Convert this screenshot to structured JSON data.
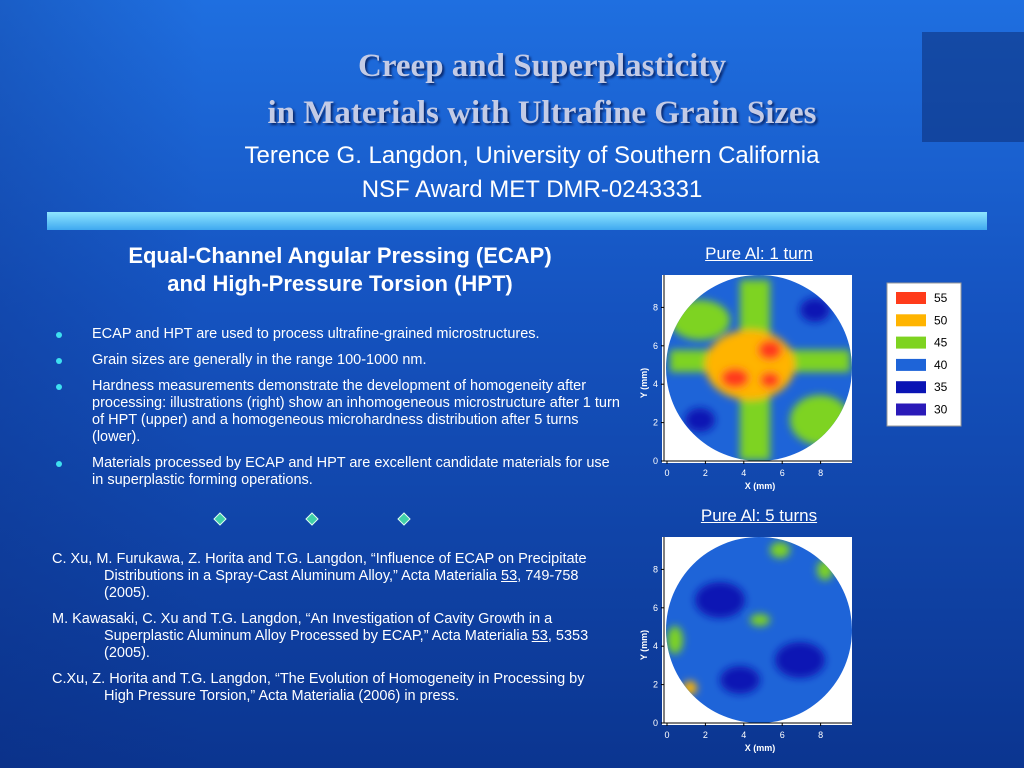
{
  "header": {
    "title_line1": "Creep and Superplasticity",
    "title_line2": "in Materials with Ultrafine Grain Sizes",
    "author": "Terence G. Langdon, University of Southern California",
    "award": "NSF Award MET DMR-0243331"
  },
  "section": {
    "heading_line1": "Equal-Channel Angular Pressing (ECAP)",
    "heading_line2": "and High-Pressure Torsion (HPT)"
  },
  "bullets": [
    "ECAP and HPT are used to process ultrafine-grained microstructures.",
    "Grain sizes are generally in the range 100-1000 nm.",
    "Hardness measurements demonstrate the development of homogeneity after processing: illustrations (right) show an inhomogeneous microstructure after 1 turn of HPT (upper) and a homogeneous microhardness distribution after 5 turns (lower).",
    "Materials processed by ECAP and HPT are excellent candidate materials for use in superplastic forming operations."
  ],
  "references": [
    {
      "before": "C. Xu, M. Furukawa, Z. Horita and T.G. Langdon, “Influence of ECAP on Precipitate Distributions in a Spray-Cast Aluminum Alloy,” Acta Materialia ",
      "volume": "53",
      "after": ", 749-758 (2005)."
    },
    {
      "before": "M. Kawasaki, C. Xu and T.G. Langdon, “An Investigation of Cavity Growth in a Superplastic Aluminum Alloy Processed by ECAP,” Acta Materialia ",
      "volume": "53",
      "after": ", 5353 (2005)."
    },
    {
      "before": "C.Xu, Z. Horita and T.G. Langdon, “The Evolution of Homogeneity in Processing by High Pressure Torsion,” Acta Materialia (2006) in press."
    }
  ],
  "maps": [
    {
      "caption": "Pure Al: 1 turn",
      "xlabel": "X (mm)",
      "ylabel": "Y (mm)",
      "xticks": [
        0,
        2,
        4,
        6,
        8
      ],
      "yticks": [
        0,
        2,
        4,
        6,
        8
      ]
    },
    {
      "caption": "Pure Al: 5 turns",
      "xlabel": "X (mm)",
      "ylabel": "Y (mm)",
      "xticks": [
        0,
        2,
        4,
        6,
        8
      ],
      "yticks": [
        0,
        2,
        4,
        6,
        8
      ]
    }
  ],
  "legend": [
    {
      "value": 55,
      "color": "#ff3b1a"
    },
    {
      "value": 50,
      "color": "#ffb400"
    },
    {
      "value": 45,
      "color": "#7ed320"
    },
    {
      "value": 40,
      "color": "#1e64d8"
    },
    {
      "value": 35,
      "color": "#0a14b4"
    },
    {
      "value": 30,
      "color": "#2a1ab8"
    }
  ]
}
